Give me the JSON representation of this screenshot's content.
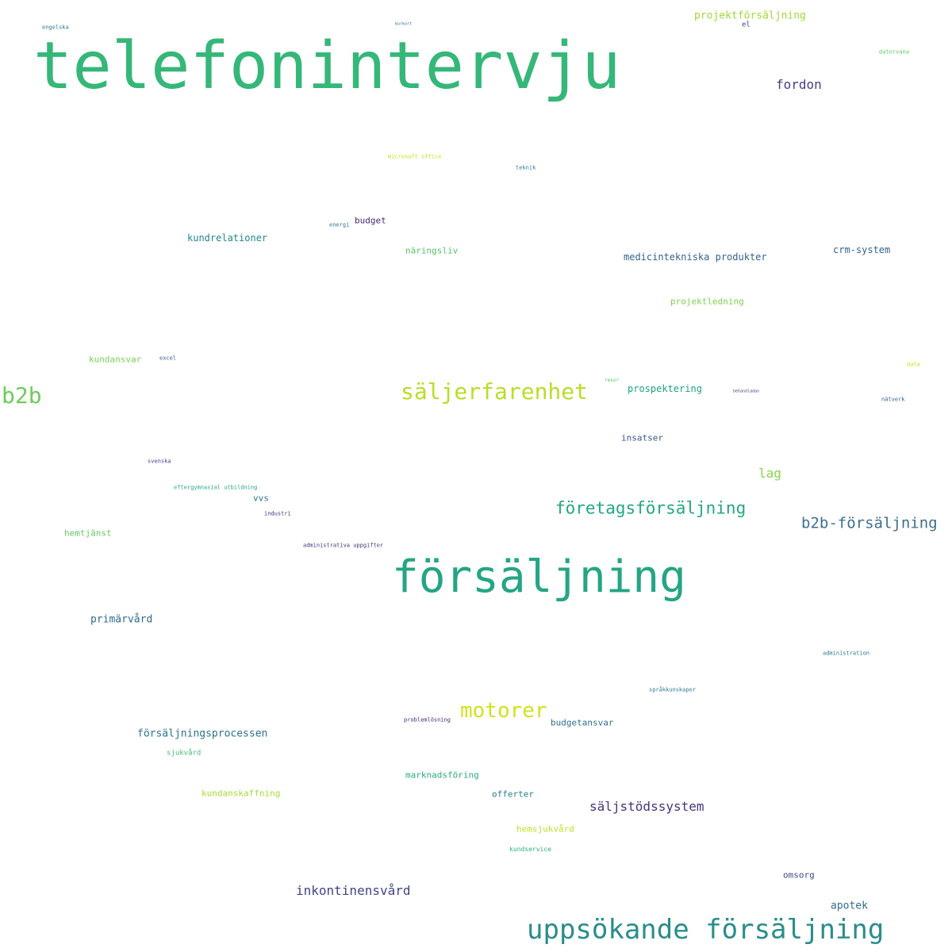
{
  "words": [
    {
      "text": "telefonintervju",
      "color": "#35b779"
    },
    {
      "text": "försäljning",
      "color": "#25a584"
    },
    {
      "text": "uppsökande försäljning",
      "color": "#2a8d8c"
    },
    {
      "text": "säljerfarenhet",
      "color": "#b8de29"
    },
    {
      "text": "b2b",
      "color": "#6ccd5a"
    },
    {
      "text": "motorer",
      "color": "#d2e21b"
    },
    {
      "text": "företagsförsäljning",
      "color": "#22a884"
    },
    {
      "text": "b2b-försäljning",
      "color": "#3e6f8e"
    },
    {
      "text": "säljstödssystem",
      "color": "#46337e"
    },
    {
      "text": "inkontinensvård",
      "color": "#414487"
    },
    {
      "text": "fordon",
      "color": "#433e85"
    },
    {
      "text": "lag",
      "color": "#86d549"
    },
    {
      "text": "försäljningsprocessen",
      "color": "#2c728e"
    },
    {
      "text": "apotek",
      "color": "#2e6e8e"
    },
    {
      "text": "primärvård",
      "color": "#2f6b8e"
    },
    {
      "text": "projektförsäljning",
      "color": "#a0da39"
    },
    {
      "text": "kundrelationer",
      "color": "#24868e"
    },
    {
      "text": "medicintekniska produkter",
      "color": "#33638d"
    },
    {
      "text": "crm-system",
      "color": "#33638d"
    },
    {
      "text": "prospektering",
      "color": "#1fa187"
    },
    {
      "text": "budget",
      "color": "#482878"
    },
    {
      "text": "insatser",
      "color": "#3b528b"
    },
    {
      "text": "näringsliv",
      "color": "#52c569"
    },
    {
      "text": "projektledning",
      "color": "#7ad151"
    },
    {
      "text": "kundansvar",
      "color": "#7ad151"
    },
    {
      "text": "hemtjänst",
      "color": "#63cb5f"
    },
    {
      "text": "vvs",
      "color": "#2c728e"
    },
    {
      "text": "budgetansvar",
      "color": "#2d708e"
    },
    {
      "text": "marknadsföring",
      "color": "#28ae80"
    },
    {
      "text": "offerter",
      "color": "#277f8e"
    },
    {
      "text": "kundanskaffning",
      "color": "#a5db36"
    },
    {
      "text": "hemsjukvård",
      "color": "#c0df25"
    },
    {
      "text": "omsorg",
      "color": "#3f4788"
    },
    {
      "text": "sjukvård",
      "color": "#40bd72"
    },
    {
      "text": "kundservice",
      "color": "#2ab07f"
    },
    {
      "text": "engelska",
      "color": "#287c8e"
    },
    {
      "text": "korkort",
      "color": "#31688e"
    },
    {
      "text": "el",
      "color": "#3e4989"
    },
    {
      "text": "datorvana",
      "color": "#5ec962"
    },
    {
      "text": "microsoft office",
      "color": "#cae11f"
    },
    {
      "text": "teknik",
      "color": "#25848e"
    },
    {
      "text": "energi",
      "color": "#2c728e"
    },
    {
      "text": "excel",
      "color": "#38588c"
    },
    {
      "text": "resor",
      "color": "#56c667"
    },
    {
      "text": "behandladan",
      "color": "#3f4788"
    },
    {
      "text": "data",
      "color": "#c8e020"
    },
    {
      "text": "nätverk",
      "color": "#355f8d"
    },
    {
      "text": "svenska",
      "color": "#443b84"
    },
    {
      "text": "eftergymnasial utbildning",
      "color": "#22a884"
    },
    {
      "text": "industri",
      "color": "#472f7d"
    },
    {
      "text": "administrativa uppgifter",
      "color": "#46327e"
    },
    {
      "text": "administration",
      "color": "#2a788e"
    },
    {
      "text": "språkkunskaper",
      "color": "#2a788e"
    },
    {
      "text": "problemlösning",
      "color": "#482475"
    }
  ]
}
